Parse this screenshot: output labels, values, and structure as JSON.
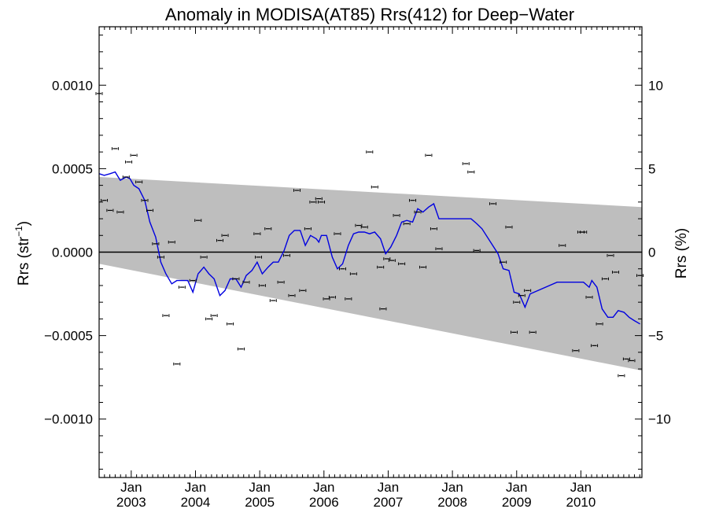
{
  "chart_data": {
    "type": "scatter",
    "title": "Anomaly in MODISA(AT85) Rrs(412) for Deep−Water",
    "ylabel": {
      "main": "Rrs (str",
      "sup": "−1",
      "close": ")"
    },
    "ylabel_right": "Rrs (%)",
    "xlim": [
      2002.5,
      2010.95
    ],
    "ylim": [
      -0.00135,
      0.00135
    ],
    "ylim_right": [
      -13.5,
      13.5
    ],
    "x_ticks": [
      {
        "x": 2003,
        "month": "Jan",
        "year": "2003"
      },
      {
        "x": 2004,
        "month": "Jan",
        "year": "2004"
      },
      {
        "x": 2005,
        "month": "Jan",
        "year": "2005"
      },
      {
        "x": 2006,
        "month": "Jan",
        "year": "2006"
      },
      {
        "x": 2007,
        "month": "Jan",
        "year": "2007"
      },
      {
        "x": 2008,
        "month": "Jan",
        "year": "2008"
      },
      {
        "x": 2009,
        "month": "Jan",
        "year": "2009"
      },
      {
        "x": 2010,
        "month": "Jan",
        "year": "2010"
      }
    ],
    "y_ticks_left": [
      {
        "v": 0.001,
        "label": "0.0010"
      },
      {
        "v": 0.0005,
        "label": "0.0005"
      },
      {
        "v": 0.0,
        "label": "0.0000"
      },
      {
        "v": -0.0005,
        "label": "−0.0005"
      },
      {
        "v": -0.001,
        "label": "−0.0010"
      }
    ],
    "y_ticks_right": [
      {
        "v": 10,
        "label": "10"
      },
      {
        "v": 5,
        "label": "5"
      },
      {
        "v": 0,
        "label": "0"
      },
      {
        "v": -5,
        "label": "−5"
      },
      {
        "v": -10,
        "label": "−10"
      }
    ],
    "band": {
      "x": [
        2002.5,
        2010.95
      ],
      "upper": [
        0.00045,
        0.00027
      ],
      "lower": [
        -7e-05,
        -0.00071
      ],
      "color": "#bebebe"
    },
    "zero_line": 0.0,
    "points": [
      [
        2002.5,
        0.00095
      ],
      [
        2002.58,
        0.00031
      ],
      [
        2002.67,
        0.00025
      ],
      [
        2002.75,
        0.00062
      ],
      [
        2002.83,
        0.00024
      ],
      [
        2002.92,
        0.00045
      ],
      [
        2002.96,
        0.00054
      ],
      [
        2003.04,
        0.00058
      ],
      [
        2003.12,
        0.00042
      ],
      [
        2003.21,
        0.00031
      ],
      [
        2003.29,
        0.00025
      ],
      [
        2003.38,
        5e-05
      ],
      [
        2003.46,
        -3e-05
      ],
      [
        2003.54,
        -0.00038
      ],
      [
        2003.63,
        6e-05
      ],
      [
        2003.71,
        -0.00067
      ],
      [
        2003.79,
        -0.00021
      ],
      [
        2003.96,
        -0.00017
      ],
      [
        2004.04,
        0.00019
      ],
      [
        2004.13,
        -3e-05
      ],
      [
        2004.21,
        -0.0004
      ],
      [
        2004.29,
        -0.00038
      ],
      [
        2004.38,
        7e-05
      ],
      [
        2004.46,
        0.0001
      ],
      [
        2004.54,
        -0.00043
      ],
      [
        2004.63,
        -0.00016
      ],
      [
        2004.71,
        -0.00058
      ],
      [
        2004.79,
        -0.00018
      ],
      [
        2004.96,
        0.00011
      ],
      [
        2004.98,
        -3e-05
      ],
      [
        2005.04,
        -0.0002
      ],
      [
        2005.13,
        0.00014
      ],
      [
        2005.21,
        -0.00029
      ],
      [
        2005.33,
        -0.00018
      ],
      [
        2005.42,
        -2e-05
      ],
      [
        2005.5,
        -0.00026
      ],
      [
        2005.58,
        0.00037
      ],
      [
        2005.67,
        -0.00023
      ],
      [
        2005.75,
        0.00014
      ],
      [
        2005.83,
        0.0003
      ],
      [
        2005.92,
        0.00032
      ],
      [
        2005.96,
        0.0003
      ],
      [
        2006.04,
        -0.00028
      ],
      [
        2006.13,
        -0.00027
      ],
      [
        2006.21,
        0.00011
      ],
      [
        2006.29,
        -0.0001
      ],
      [
        2006.38,
        -0.00028
      ],
      [
        2006.46,
        -0.00013
      ],
      [
        2006.54,
        0.00016
      ],
      [
        2006.63,
        0.00015
      ],
      [
        2006.71,
        0.0006
      ],
      [
        2006.79,
        0.00039
      ],
      [
        2006.88,
        -9e-05
      ],
      [
        2006.92,
        -0.00034
      ],
      [
        2006.98,
        -4e-05
      ],
      [
        2007.06,
        -5e-05
      ],
      [
        2007.13,
        0.00022
      ],
      [
        2007.21,
        -7e-05
      ],
      [
        2007.29,
        0.00017
      ],
      [
        2007.38,
        0.00031
      ],
      [
        2007.46,
        0.00024
      ],
      [
        2007.54,
        -9e-05
      ],
      [
        2007.63,
        0.00058
      ],
      [
        2007.71,
        0.00014
      ],
      [
        2007.79,
        2e-05
      ],
      [
        2008.21,
        0.00053
      ],
      [
        2008.29,
        0.00048
      ],
      [
        2008.38,
        1e-05
      ],
      [
        2008.63,
        0.00029
      ],
      [
        2008.79,
        -6e-05
      ],
      [
        2008.88,
        0.00015
      ],
      [
        2008.96,
        -0.00048
      ],
      [
        2009.0,
        -0.0003
      ],
      [
        2009.08,
        -0.00026
      ],
      [
        2009.17,
        -0.00023
      ],
      [
        2009.25,
        -0.00048
      ],
      [
        2009.71,
        4e-05
      ],
      [
        2009.92,
        -0.00059
      ],
      [
        2010.0,
        0.00012
      ],
      [
        2010.04,
        0.00012
      ],
      [
        2010.13,
        -0.00027
      ],
      [
        2010.21,
        -0.00056
      ],
      [
        2010.29,
        -0.00043
      ],
      [
        2010.38,
        -0.00016
      ],
      [
        2010.46,
        -2e-05
      ],
      [
        2010.54,
        -0.00012
      ],
      [
        2010.63,
        -0.00074
      ],
      [
        2010.71,
        -0.00064
      ],
      [
        2010.79,
        -0.00065
      ],
      [
        2010.92,
        -0.00014
      ]
    ],
    "line": {
      "color": "#0000e0",
      "x": [
        2002.5,
        2002.58,
        2002.67,
        2002.75,
        2002.83,
        2002.92,
        2002.98,
        2003.04,
        2003.12,
        2003.21,
        2003.29,
        2003.38,
        2003.46,
        2003.54,
        2003.63,
        2003.71,
        2003.79,
        2003.88,
        2003.96,
        2004.04,
        2004.13,
        2004.21,
        2004.29,
        2004.38,
        2004.46,
        2004.54,
        2004.63,
        2004.71,
        2004.79,
        2004.88,
        2004.96,
        2005.04,
        2005.13,
        2005.21,
        2005.29,
        2005.38,
        2005.46,
        2005.54,
        2005.63,
        2005.71,
        2005.79,
        2005.88,
        2005.92,
        2005.96,
        2006.04,
        2006.13,
        2006.21,
        2006.29,
        2006.38,
        2006.46,
        2006.54,
        2006.63,
        2006.71,
        2006.79,
        2006.88,
        2006.96,
        2007.04,
        2007.13,
        2007.21,
        2007.29,
        2007.38,
        2007.46,
        2007.54,
        2007.63,
        2007.71,
        2007.79,
        2008.29,
        2008.38,
        2008.46,
        2008.71,
        2008.79,
        2008.88,
        2008.96,
        2009.04,
        2009.13,
        2009.21,
        2009.63,
        2010.04,
        2010.13,
        2010.17,
        2010.25,
        2010.33,
        2010.42,
        2010.5,
        2010.58,
        2010.67,
        2010.75,
        2010.83,
        2010.92
      ],
      "y": [
        0.00047,
        0.00046,
        0.00047,
        0.00048,
        0.00043,
        0.00045,
        0.00044,
        0.0004,
        0.00038,
        0.00031,
        0.00018,
        9e-05,
        -6e-05,
        -0.00013,
        -0.00019,
        -0.00017,
        -0.00017,
        -0.00017,
        -0.00024,
        -0.00013,
        -9e-05,
        -0.00013,
        -0.00016,
        -0.00026,
        -0.00023,
        -0.00016,
        -0.00016,
        -0.00021,
        -0.00014,
        -0.00011,
        -6e-05,
        -0.00013,
        -9e-05,
        -6e-05,
        -6e-05,
        1e-05,
        0.0001,
        0.00013,
        0.00013,
        4e-05,
        0.0001,
        8e-05,
        6e-05,
        0.0001,
        0.0001,
        -3e-05,
        -0.0001,
        -7e-05,
        4e-05,
        0.00011,
        0.00012,
        0.00012,
        0.00011,
        0.00012,
        8e-05,
        -1e-05,
        3e-05,
        0.0001,
        0.00018,
        0.00019,
        0.00018,
        0.00026,
        0.00024,
        0.00027,
        0.00029,
        0.0002,
        0.0002,
        0.00017,
        0.00014,
        -1e-05,
        -0.0001,
        -0.00011,
        -0.00024,
        -0.00025,
        -0.00033,
        -0.00025,
        -0.00018,
        -0.00018,
        -0.00021,
        -0.00017,
        -0.00021,
        -0.00034,
        -0.00039,
        -0.00039,
        -0.00035,
        -0.00036,
        -0.00039,
        -0.00041,
        -0.00043
      ]
    }
  }
}
